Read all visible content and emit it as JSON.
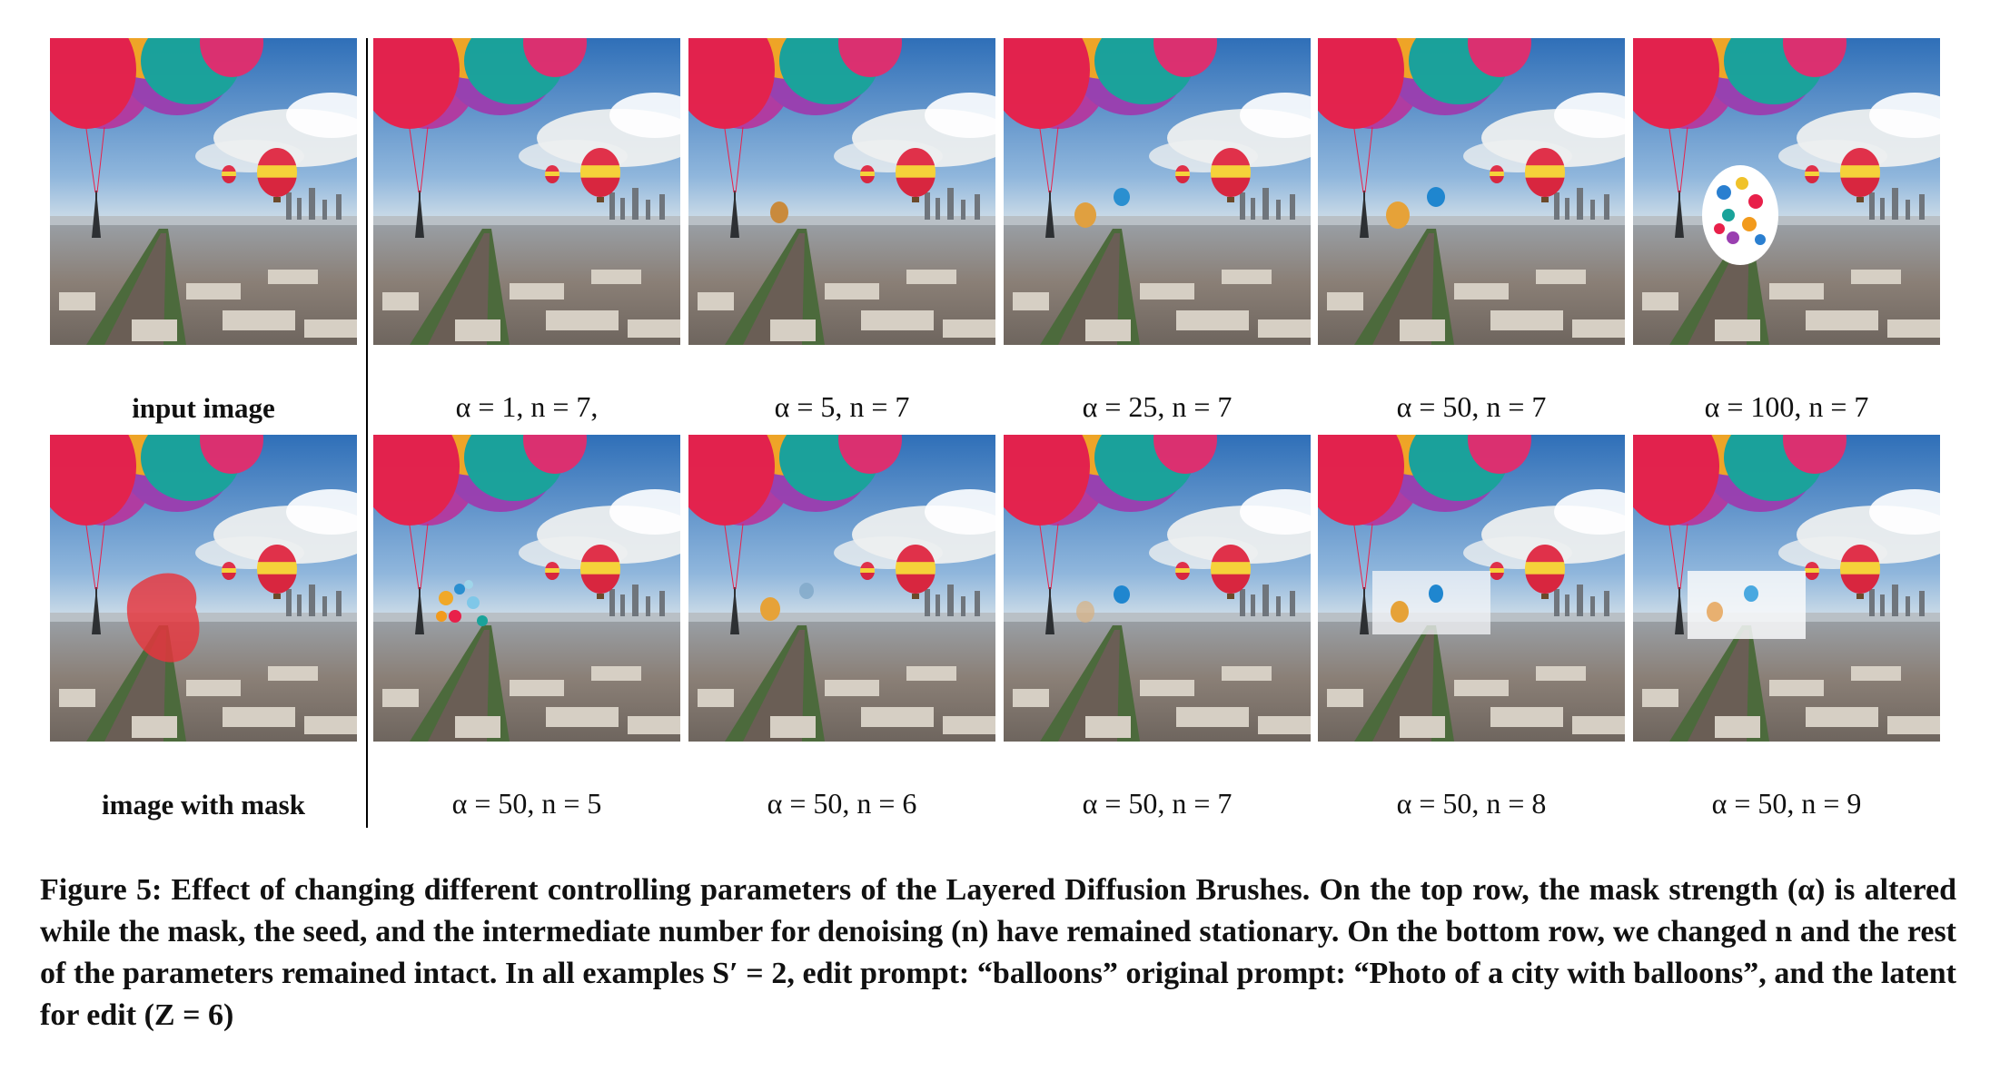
{
  "figure": {
    "top_row": {
      "labels": [
        "input image",
        "α = 1, n = 7,",
        "α = 5, n = 7",
        "α = 25, n = 7",
        "α = 50, n = 7",
        "α = 100, n = 7"
      ]
    },
    "bottom_row": {
      "labels": [
        "image with mask",
        "α = 50, n = 5",
        "α = 50, n = 6",
        "α = 50, n = 7",
        "α = 50, n = 8",
        "α = 50, n = 9"
      ]
    },
    "colors": {
      "sky_top": "#3f7fc4",
      "sky_bottom": "#cfe0ee",
      "balloon_red": "#e8204a",
      "balloon_orange": "#f29a1c",
      "balloon_teal": "#1aa39a",
      "balloon_purple": "#9a3fb0",
      "mask_red": "#e8353c"
    }
  },
  "caption": {
    "text": "Figure 5: Effect of changing different controlling parameters of the Layered Diffusion Brushes. On the top row, the mask strength (α) is altered while the mask, the seed, and the intermediate number for denoising (n) have remained stationary. On the bottom row, we changed n and the rest of the parameters remained intact. In all examples S′ = 2, edit prompt: “balloons” original prompt: “Photo of a city with balloons”, and the latent for edit (Z = 6)"
  }
}
